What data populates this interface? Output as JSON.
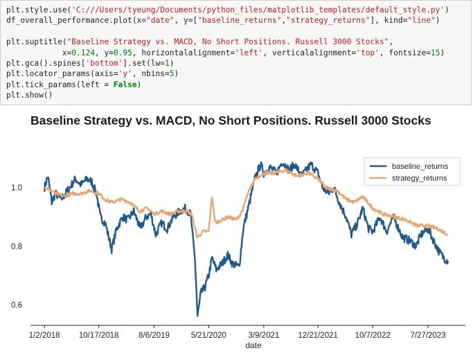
{
  "code": {
    "lines": [
      [
        [
          "plt.style.use(",
          ""
        ],
        [
          "'C:///Users/tyeung/Documents/python_files/matplotlib_templates/default_style.py'",
          "str"
        ],
        [
          ")",
          ""
        ]
      ],
      [
        [
          "df_overall_performance.plot(x=",
          ""
        ],
        [
          "\"date\"",
          "str"
        ],
        [
          ", y=[",
          ""
        ],
        [
          "\"baseline_returns\"",
          "str"
        ],
        [
          ",",
          ""
        ],
        [
          "\"strategy_returns\"",
          "str"
        ],
        [
          "], kind=",
          ""
        ],
        [
          "\"line\"",
          "str"
        ],
        [
          ")",
          ""
        ]
      ],
      [
        [
          "",
          ""
        ]
      ],
      [
        [
          "plt.suptitle(",
          ""
        ],
        [
          "\"Baseline Strategy vs. MACD, No Short Positions. Russell 3000 Stocks\"",
          "str"
        ],
        [
          ",",
          ""
        ]
      ],
      [
        [
          "            x=",
          ""
        ],
        [
          "0.124",
          "num"
        ],
        [
          ", y=",
          ""
        ],
        [
          "0.95",
          "num"
        ],
        [
          ", horizontalalignment=",
          ""
        ],
        [
          "'left'",
          "str"
        ],
        [
          ", verticalalignment=",
          ""
        ],
        [
          "'top'",
          "str"
        ],
        [
          ", fontsize=",
          ""
        ],
        [
          "15",
          "num"
        ],
        [
          ")",
          ""
        ]
      ],
      [
        [
          "plt.gca().spines[",
          ""
        ],
        [
          "'bottom'",
          "str"
        ],
        [
          "].set(lw=",
          ""
        ],
        [
          "1",
          "num"
        ],
        [
          ")",
          ""
        ]
      ],
      [
        [
          "plt.locator_params(axis=",
          ""
        ],
        [
          "'y'",
          "str"
        ],
        [
          ", nbins=",
          ""
        ],
        [
          "5",
          "num"
        ],
        [
          ")",
          ""
        ]
      ],
      [
        [
          "plt.tick_params(left = ",
          ""
        ],
        [
          "False",
          "kw"
        ],
        [
          ")",
          ""
        ]
      ],
      [
        [
          "plt.show()",
          ""
        ]
      ]
    ]
  },
  "chart_data": {
    "type": "line",
    "title": "Baseline Strategy vs. MACD, No Short Positions. Russell 3000 Stocks",
    "xlabel": "date",
    "ylabel": "",
    "x_tick_labels": [
      "1/2/2018",
      "10/17/2018",
      "8/6/2019",
      "5/21/2020",
      "3/9/2021",
      "12/21/2021",
      "10/7/2022",
      "7/27/2023"
    ],
    "x_tick_dates": [
      "2018-01-02",
      "2018-10-17",
      "2019-08-06",
      "2020-05-21",
      "2021-03-09",
      "2021-12-21",
      "2022-10-07",
      "2023-07-27"
    ],
    "y_ticks": [
      0.6,
      0.8,
      1.0
    ],
    "y_tick_labels": [
      "0.6",
      "0.8",
      "1.0"
    ],
    "xlim": [
      "2017-10-20",
      "2024-02-10"
    ],
    "ylim": [
      0.53,
      1.14
    ],
    "grid": false,
    "legend_position": "upper right",
    "series": [
      {
        "name": "baseline_returns",
        "color": "#1f5a8a",
        "points": [
          [
            "2018-01-02",
            1.0
          ],
          [
            "2018-01-20",
            1.04
          ],
          [
            "2018-02-10",
            0.95
          ],
          [
            "2018-03-01",
            0.98
          ],
          [
            "2018-04-01",
            0.96
          ],
          [
            "2018-05-15",
            1.0
          ],
          [
            "2018-06-15",
            1.03
          ],
          [
            "2018-07-15",
            1.01
          ],
          [
            "2018-08-15",
            1.03
          ],
          [
            "2018-09-10",
            1.02
          ],
          [
            "2018-10-05",
            0.98
          ],
          [
            "2018-10-25",
            0.9
          ],
          [
            "2018-11-20",
            0.88
          ],
          [
            "2018-12-24",
            0.79
          ],
          [
            "2019-01-20",
            0.86
          ],
          [
            "2019-02-20",
            0.9
          ],
          [
            "2019-03-20",
            0.89
          ],
          [
            "2019-04-20",
            0.92
          ],
          [
            "2019-05-25",
            0.86
          ],
          [
            "2019-06-25",
            0.9
          ],
          [
            "2019-07-20",
            0.91
          ],
          [
            "2019-08-15",
            0.84
          ],
          [
            "2019-09-15",
            0.88
          ],
          [
            "2019-10-15",
            0.86
          ],
          [
            "2019-11-15",
            0.9
          ],
          [
            "2019-12-20",
            0.92
          ],
          [
            "2020-01-20",
            0.93
          ],
          [
            "2020-02-15",
            0.91
          ],
          [
            "2020-03-10",
            0.75
          ],
          [
            "2020-03-23",
            0.56
          ],
          [
            "2020-04-10",
            0.64
          ],
          [
            "2020-05-01",
            0.66
          ],
          [
            "2020-05-21",
            0.7
          ],
          [
            "2020-06-08",
            0.76
          ],
          [
            "2020-06-30",
            0.72
          ],
          [
            "2020-07-30",
            0.74
          ],
          [
            "2020-08-30",
            0.77
          ],
          [
            "2020-09-25",
            0.74
          ],
          [
            "2020-10-30",
            0.73
          ],
          [
            "2020-11-20",
            0.86
          ],
          [
            "2020-12-20",
            0.94
          ],
          [
            "2021-01-20",
            1.03
          ],
          [
            "2021-02-20",
            1.08
          ],
          [
            "2021-03-09",
            1.05
          ],
          [
            "2021-04-10",
            1.07
          ],
          [
            "2021-05-15",
            1.05
          ],
          [
            "2021-06-15",
            1.09
          ],
          [
            "2021-07-20",
            1.06
          ],
          [
            "2021-08-20",
            1.08
          ],
          [
            "2021-09-25",
            1.04
          ],
          [
            "2021-10-20",
            1.06
          ],
          [
            "2021-11-15",
            1.08
          ],
          [
            "2021-12-21",
            1.05
          ],
          [
            "2022-01-15",
            1.0
          ],
          [
            "2022-02-15",
            0.98
          ],
          [
            "2022-03-15",
            1.0
          ],
          [
            "2022-04-20",
            0.94
          ],
          [
            "2022-05-20",
            0.9
          ],
          [
            "2022-06-16",
            0.84
          ],
          [
            "2022-07-20",
            0.88
          ],
          [
            "2022-08-15",
            0.93
          ],
          [
            "2022-09-15",
            0.86
          ],
          [
            "2022-10-07",
            0.85
          ],
          [
            "2022-11-15",
            0.9
          ],
          [
            "2022-12-20",
            0.85
          ],
          [
            "2023-01-25",
            0.9
          ],
          [
            "2023-03-15",
            0.83
          ],
          [
            "2023-04-20",
            0.82
          ],
          [
            "2023-05-25",
            0.8
          ],
          [
            "2023-06-20",
            0.84
          ],
          [
            "2023-07-27",
            0.86
          ],
          [
            "2023-08-25",
            0.82
          ],
          [
            "2023-09-25",
            0.78
          ],
          [
            "2023-10-20",
            0.76
          ],
          [
            "2023-11-10",
            0.75
          ]
        ]
      },
      {
        "name": "strategy_returns",
        "color": "#e8a673",
        "points": [
          [
            "2018-01-02",
            1.0
          ],
          [
            "2018-02-05",
            0.99
          ],
          [
            "2018-03-01",
            0.98
          ],
          [
            "2018-04-15",
            0.97
          ],
          [
            "2018-06-01",
            0.98
          ],
          [
            "2018-07-15",
            0.98
          ],
          [
            "2018-09-01",
            0.99
          ],
          [
            "2018-10-17",
            0.98
          ],
          [
            "2018-11-20",
            0.96
          ],
          [
            "2018-12-24",
            0.95
          ],
          [
            "2019-02-15",
            0.96
          ],
          [
            "2019-04-01",
            0.95
          ],
          [
            "2019-05-20",
            0.92
          ],
          [
            "2019-07-01",
            0.93
          ],
          [
            "2019-08-06",
            0.91
          ],
          [
            "2019-09-15",
            0.92
          ],
          [
            "2019-11-01",
            0.91
          ],
          [
            "2019-12-15",
            0.92
          ],
          [
            "2020-01-25",
            0.92
          ],
          [
            "2020-02-20",
            0.91
          ],
          [
            "2020-03-10",
            0.86
          ],
          [
            "2020-03-23",
            0.83
          ],
          [
            "2020-04-20",
            0.85
          ],
          [
            "2020-05-21",
            0.85
          ],
          [
            "2020-06-08",
            0.97
          ],
          [
            "2020-06-25",
            0.88
          ],
          [
            "2020-07-30",
            0.89
          ],
          [
            "2020-09-01",
            0.9
          ],
          [
            "2020-10-15",
            0.89
          ],
          [
            "2020-11-15",
            0.92
          ],
          [
            "2020-12-15",
            0.98
          ],
          [
            "2021-01-20",
            1.03
          ],
          [
            "2021-03-09",
            1.05
          ],
          [
            "2021-05-01",
            1.05
          ],
          [
            "2021-07-01",
            1.06
          ],
          [
            "2021-09-01",
            1.04
          ],
          [
            "2021-11-01",
            1.05
          ],
          [
            "2021-12-21",
            1.03
          ],
          [
            "2022-02-01",
            1.0
          ],
          [
            "2022-04-01",
            0.99
          ],
          [
            "2022-05-20",
            0.96
          ],
          [
            "2022-07-01",
            0.95
          ],
          [
            "2022-08-15",
            0.97
          ],
          [
            "2022-10-07",
            0.93
          ],
          [
            "2022-12-01",
            0.91
          ],
          [
            "2023-02-01",
            0.9
          ],
          [
            "2023-04-01",
            0.89
          ],
          [
            "2023-06-01",
            0.87
          ],
          [
            "2023-07-27",
            0.87
          ],
          [
            "2023-09-15",
            0.86
          ],
          [
            "2023-11-10",
            0.84
          ]
        ]
      }
    ]
  }
}
